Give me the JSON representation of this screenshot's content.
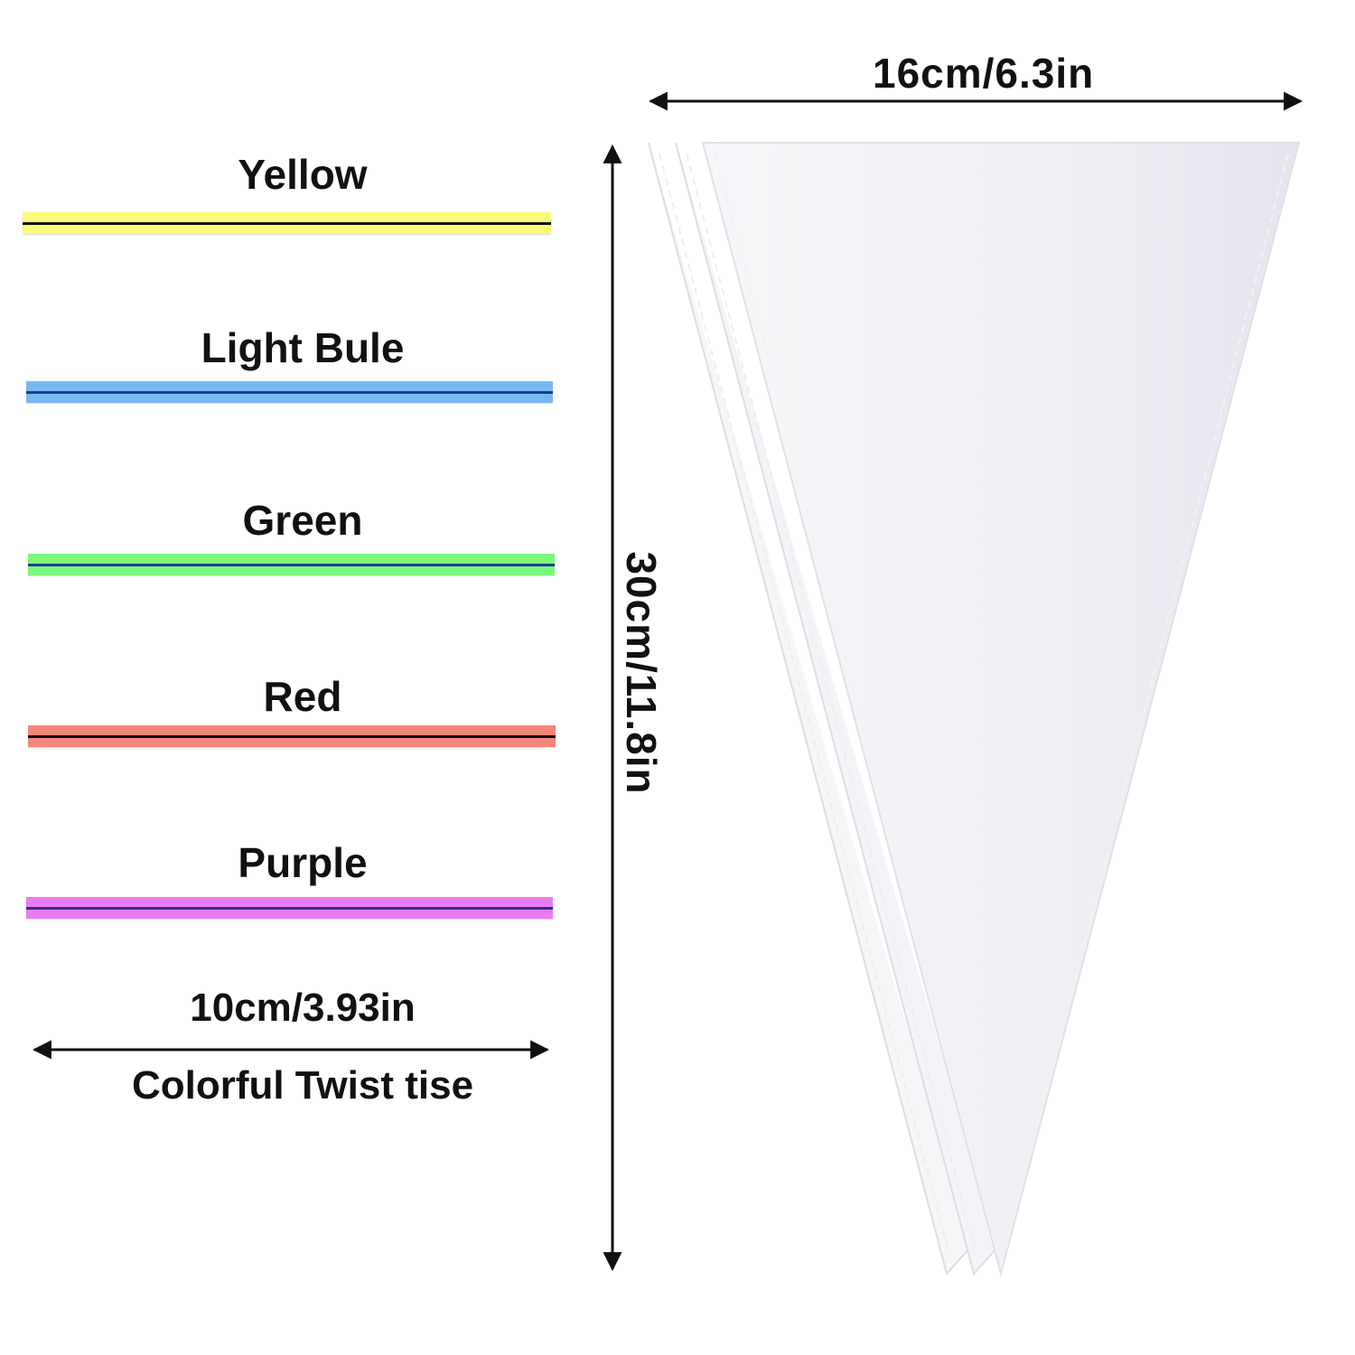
{
  "ties": [
    {
      "label": "Yellow",
      "color": "#fbfa78",
      "wire": "#111111"
    },
    {
      "label": "Light Bule",
      "color": "#79b9ef",
      "wire": "#1a3a9a"
    },
    {
      "label": "Green",
      "color": "#7cf77a",
      "wire": "#1f3e8a"
    },
    {
      "label": "Red",
      "color": "#f6857a",
      "wire": "#111111"
    },
    {
      "label": "Purple",
      "color": "#ea7cf2",
      "wire": "#2b2f8f"
    }
  ],
  "tie_length_label": "10cm/3.93in",
  "tie_caption": "Colorful Twist tise",
  "bag_width_label": "16cm/6.3in",
  "bag_height_label": "30cm/11.8in"
}
